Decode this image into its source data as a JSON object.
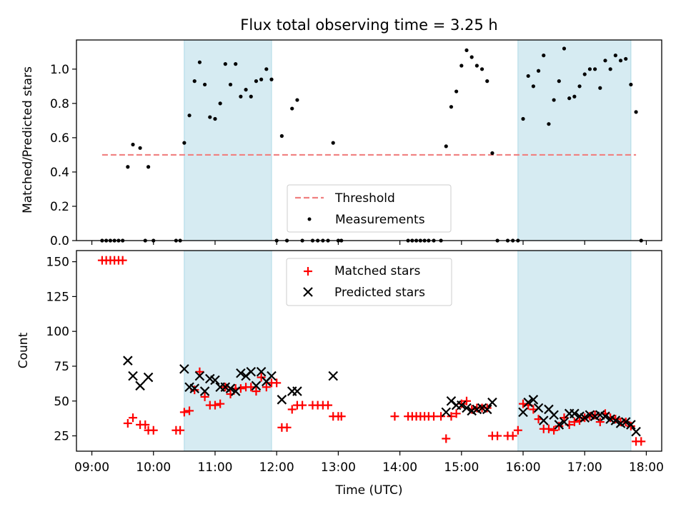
{
  "chart_data": [
    {
      "type": "scatter",
      "title": "Flux total observing time = 3.25 h",
      "ylabel": "Matched/Predicted stars",
      "xlabel": "",
      "xlim": [
        "08:45",
        "18:15"
      ],
      "ylim": [
        0,
        1.17
      ],
      "yticks": [
        0.0,
        0.2,
        0.4,
        0.6,
        0.8,
        1.0
      ],
      "ytick_labels": [
        "0.0",
        "0.2",
        "0.4",
        "0.6",
        "0.8",
        "1.0"
      ],
      "grid": false,
      "legend_position": "lower-center",
      "shaded_intervals": [
        [
          "10:30",
          "11:55"
        ],
        [
          "15:55",
          "17:45"
        ]
      ],
      "shade_color": "#add8e6",
      "threshold": {
        "label": "Threshold",
        "value": 0.5,
        "x_range": [
          "09:10",
          "17:50"
        ],
        "color": "#f08080"
      },
      "series": [
        {
          "name": "Measurements",
          "color": "#000000",
          "points": [
            [
              "09:10",
              0
            ],
            [
              "09:14",
              0
            ],
            [
              "09:18",
              0
            ],
            [
              "09:22",
              0
            ],
            [
              "09:26",
              0
            ],
            [
              "09:30",
              0
            ],
            [
              "09:35",
              0.43
            ],
            [
              "09:40",
              0.56
            ],
            [
              "09:47",
              0.54
            ],
            [
              "09:52",
              0
            ],
            [
              "09:55",
              0.43
            ],
            [
              "10:00",
              0
            ],
            [
              "10:22",
              0
            ],
            [
              "10:26",
              0
            ],
            [
              "10:30",
              0.57
            ],
            [
              "10:35",
              0.73
            ],
            [
              "10:40",
              0.93
            ],
            [
              "10:45",
              1.04
            ],
            [
              "10:50",
              0.91
            ],
            [
              "10:55",
              0.72
            ],
            [
              "11:00",
              0.71
            ],
            [
              "11:05",
              0.8
            ],
            [
              "11:10",
              1.03
            ],
            [
              "11:15",
              0.91
            ],
            [
              "11:20",
              1.03
            ],
            [
              "11:25",
              0.84
            ],
            [
              "11:30",
              0.88
            ],
            [
              "11:35",
              0.84
            ],
            [
              "11:40",
              0.93
            ],
            [
              "11:45",
              0.94
            ],
            [
              "11:50",
              1.0
            ],
            [
              "11:55",
              0.94
            ],
            [
              "12:00",
              0
            ],
            [
              "12:05",
              0.61
            ],
            [
              "12:10",
              0
            ],
            [
              "12:15",
              0.77
            ],
            [
              "12:20",
              0.82
            ],
            [
              "12:25",
              0
            ],
            [
              "12:35",
              0
            ],
            [
              "12:40",
              0
            ],
            [
              "12:45",
              0
            ],
            [
              "12:50",
              0
            ],
            [
              "12:55",
              0.57
            ],
            [
              "13:00",
              0
            ],
            [
              "13:03",
              0
            ],
            [
              "14:08",
              0
            ],
            [
              "14:12",
              0
            ],
            [
              "14:16",
              0
            ],
            [
              "14:20",
              0
            ],
            [
              "14:24",
              0
            ],
            [
              "14:28",
              0
            ],
            [
              "14:33",
              0
            ],
            [
              "14:40",
              0
            ],
            [
              "14:45",
              0.55
            ],
            [
              "14:50",
              0.78
            ],
            [
              "14:55",
              0.87
            ],
            [
              "15:00",
              1.02
            ],
            [
              "15:05",
              1.11
            ],
            [
              "15:10",
              1.07
            ],
            [
              "15:15",
              1.02
            ],
            [
              "15:20",
              1.0
            ],
            [
              "15:25",
              0.93
            ],
            [
              "15:30",
              0.51
            ],
            [
              "15:35",
              0
            ],
            [
              "15:45",
              0
            ],
            [
              "15:50",
              0
            ],
            [
              "15:55",
              0
            ],
            [
              "16:00",
              0.71
            ],
            [
              "16:05",
              0.96
            ],
            [
              "16:10",
              0.9
            ],
            [
              "16:15",
              0.99
            ],
            [
              "16:20",
              1.08
            ],
            [
              "16:25",
              0.68
            ],
            [
              "16:30",
              0.82
            ],
            [
              "16:35",
              0.93
            ],
            [
              "16:40",
              1.12
            ],
            [
              "16:45",
              0.83
            ],
            [
              "16:50",
              0.84
            ],
            [
              "16:55",
              0.9
            ],
            [
              "17:00",
              0.97
            ],
            [
              "17:05",
              1.0
            ],
            [
              "17:10",
              1.0
            ],
            [
              "17:15",
              0.89
            ],
            [
              "17:20",
              1.05
            ],
            [
              "17:25",
              1.0
            ],
            [
              "17:30",
              1.08
            ],
            [
              "17:35",
              1.05
            ],
            [
              "17:40",
              1.06
            ],
            [
              "17:45",
              0.91
            ],
            [
              "17:50",
              0.75
            ],
            [
              "17:55",
              0
            ]
          ]
        }
      ],
      "legend": [
        {
          "label": "Threshold",
          "marker": "dashed-line"
        },
        {
          "label": "Measurements",
          "marker": "dot"
        }
      ]
    },
    {
      "type": "scatter",
      "title": "",
      "ylabel": "Count",
      "xlabel": "Time (UTC)",
      "xlim": [
        "08:45",
        "18:15"
      ],
      "ylim": [
        14,
        158
      ],
      "yticks": [
        25,
        50,
        75,
        100,
        125,
        150
      ],
      "ytick_labels": [
        "25",
        "50",
        "75",
        "100",
        "125",
        "150"
      ],
      "xticks": [
        "09:00",
        "10:00",
        "11:00",
        "12:00",
        "13:00",
        "14:00",
        "15:00",
        "16:00",
        "17:00",
        "18:00"
      ],
      "grid": false,
      "legend_position": "upper-center",
      "shaded_intervals": [
        [
          "10:30",
          "11:55"
        ],
        [
          "15:55",
          "17:45"
        ]
      ],
      "shade_color": "#add8e6",
      "series": [
        {
          "name": "Matched stars",
          "color": "#ff0000",
          "marker": "plus",
          "points": [
            [
              "09:10",
              151
            ],
            [
              "09:14",
              151
            ],
            [
              "09:18",
              151
            ],
            [
              "09:22",
              151
            ],
            [
              "09:26",
              151
            ],
            [
              "09:30",
              151
            ],
            [
              "09:35",
              34
            ],
            [
              "09:40",
              38
            ],
            [
              "09:47",
              33
            ],
            [
              "09:52",
              33
            ],
            [
              "09:55",
              29
            ],
            [
              "10:00",
              29
            ],
            [
              "10:22",
              29
            ],
            [
              "10:26",
              29
            ],
            [
              "10:30",
              42
            ],
            [
              "10:35",
              43
            ],
            [
              "10:40",
              58
            ],
            [
              "10:45",
              71
            ],
            [
              "10:50",
              53
            ],
            [
              "10:55",
              47
            ],
            [
              "11:00",
              47
            ],
            [
              "11:05",
              48
            ],
            [
              "11:10",
              60
            ],
            [
              "11:15",
              55
            ],
            [
              "11:20",
              59
            ],
            [
              "11:25",
              59
            ],
            [
              "11:30",
              60
            ],
            [
              "11:35",
              60
            ],
            [
              "11:40",
              57
            ],
            [
              "11:45",
              67
            ],
            [
              "11:50",
              60
            ],
            [
              "11:55",
              63
            ],
            [
              "12:00",
              63
            ],
            [
              "12:05",
              31
            ],
            [
              "12:10",
              31
            ],
            [
              "12:15",
              44
            ],
            [
              "12:20",
              47
            ],
            [
              "12:25",
              47
            ],
            [
              "12:35",
              47
            ],
            [
              "12:40",
              47
            ],
            [
              "12:45",
              47
            ],
            [
              "12:50",
              47
            ],
            [
              "12:55",
              39
            ],
            [
              "13:00",
              39
            ],
            [
              "13:03",
              39
            ],
            [
              "13:55",
              39
            ],
            [
              "14:08",
              39
            ],
            [
              "14:12",
              39
            ],
            [
              "14:16",
              39
            ],
            [
              "14:20",
              39
            ],
            [
              "14:24",
              39
            ],
            [
              "14:28",
              39
            ],
            [
              "14:33",
              39
            ],
            [
              "14:40",
              39
            ],
            [
              "14:45",
              23
            ],
            [
              "14:50",
              39
            ],
            [
              "14:55",
              41
            ],
            [
              "15:00",
              48
            ],
            [
              "15:05",
              50
            ],
            [
              "15:10",
              44
            ],
            [
              "15:15",
              45
            ],
            [
              "15:20",
              45
            ],
            [
              "15:25",
              45
            ],
            [
              "15:30",
              25
            ],
            [
              "15:35",
              25
            ],
            [
              "15:45",
              25
            ],
            [
              "15:50",
              25
            ],
            [
              "15:55",
              29
            ],
            [
              "16:00",
              48
            ],
            [
              "16:05",
              47
            ],
            [
              "16:10",
              44
            ],
            [
              "16:15",
              37
            ],
            [
              "16:20",
              30
            ],
            [
              "16:25",
              30
            ],
            [
              "16:30",
              29
            ],
            [
              "16:35",
              32
            ],
            [
              "16:40",
              38
            ],
            [
              "16:45",
              33
            ],
            [
              "16:50",
              35
            ],
            [
              "16:55",
              36
            ],
            [
              "17:00",
              38
            ],
            [
              "17:05",
              39
            ],
            [
              "17:10",
              40
            ],
            [
              "17:15",
              35
            ],
            [
              "17:20",
              41
            ],
            [
              "17:25",
              38
            ],
            [
              "17:30",
              37
            ],
            [
              "17:35",
              35
            ],
            [
              "17:40",
              35
            ],
            [
              "17:45",
              32
            ],
            [
              "17:50",
              21
            ],
            [
              "17:55",
              21
            ]
          ]
        },
        {
          "name": "Predicted stars",
          "color": "#000000",
          "marker": "x",
          "points": [
            [
              "09:35",
              79
            ],
            [
              "09:40",
              68
            ],
            [
              "09:47",
              61
            ],
            [
              "09:55",
              67
            ],
            [
              "10:30",
              73
            ],
            [
              "10:35",
              60
            ],
            [
              "10:40",
              59
            ],
            [
              "10:45",
              68
            ],
            [
              "10:50",
              57
            ],
            [
              "10:55",
              66
            ],
            [
              "11:00",
              65
            ],
            [
              "11:05",
              60
            ],
            [
              "11:10",
              60
            ],
            [
              "11:15",
              59
            ],
            [
              "11:20",
              57
            ],
            [
              "11:25",
              70
            ],
            [
              "11:30",
              68
            ],
            [
              "11:35",
              71
            ],
            [
              "11:40",
              61
            ],
            [
              "11:45",
              71
            ],
            [
              "11:50",
              64
            ],
            [
              "11:55",
              68
            ],
            [
              "12:05",
              51
            ],
            [
              "12:15",
              57
            ],
            [
              "12:20",
              57
            ],
            [
              "12:55",
              68
            ],
            [
              "14:45",
              42
            ],
            [
              "14:50",
              50
            ],
            [
              "14:55",
              47
            ],
            [
              "15:00",
              47
            ],
            [
              "15:05",
              45
            ],
            [
              "15:10",
              43
            ],
            [
              "15:15",
              44
            ],
            [
              "15:20",
              45
            ],
            [
              "15:25",
              44
            ],
            [
              "15:30",
              49
            ],
            [
              "16:00",
              42
            ],
            [
              "16:05",
              49
            ],
            [
              "16:10",
              51
            ],
            [
              "16:15",
              45
            ],
            [
              "16:20",
              36
            ],
            [
              "16:25",
              44
            ],
            [
              "16:30",
              40
            ],
            [
              "16:35",
              33
            ],
            [
              "16:40",
              35
            ],
            [
              "16:45",
              41
            ],
            [
              "16:50",
              41
            ],
            [
              "16:55",
              39
            ],
            [
              "17:00",
              38
            ],
            [
              "17:05",
              40
            ],
            [
              "17:10",
              39
            ],
            [
              "17:15",
              40
            ],
            [
              "17:20",
              39
            ],
            [
              "17:25",
              37
            ],
            [
              "17:30",
              36
            ],
            [
              "17:35",
              34
            ],
            [
              "17:40",
              35
            ],
            [
              "17:45",
              33
            ],
            [
              "17:50",
              28
            ]
          ]
        }
      ],
      "legend": [
        {
          "label": "Matched stars",
          "marker": "plus"
        },
        {
          "label": "Predicted stars",
          "marker": "x"
        }
      ]
    }
  ]
}
